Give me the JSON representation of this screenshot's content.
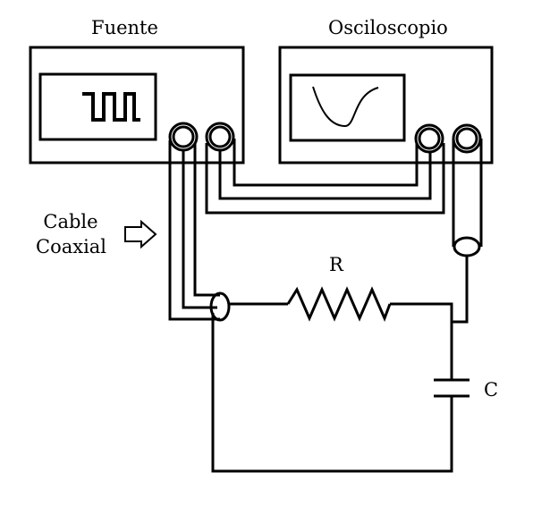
{
  "devices": {
    "source": {
      "label": "Fuente",
      "screen_icon": "square-wave-icon"
    },
    "scope": {
      "label": "Osciloscopio",
      "screen_icon": "exponential-curve-icon"
    }
  },
  "cable": {
    "line1": "Cable",
    "line2": "Coaxial",
    "pointer_icon": "right-arrow-icon"
  },
  "components": {
    "resistor": {
      "label": "R"
    },
    "capacitor": {
      "label": "C"
    }
  },
  "colors": {
    "ink": "#000000",
    "background": "#ffffff"
  }
}
